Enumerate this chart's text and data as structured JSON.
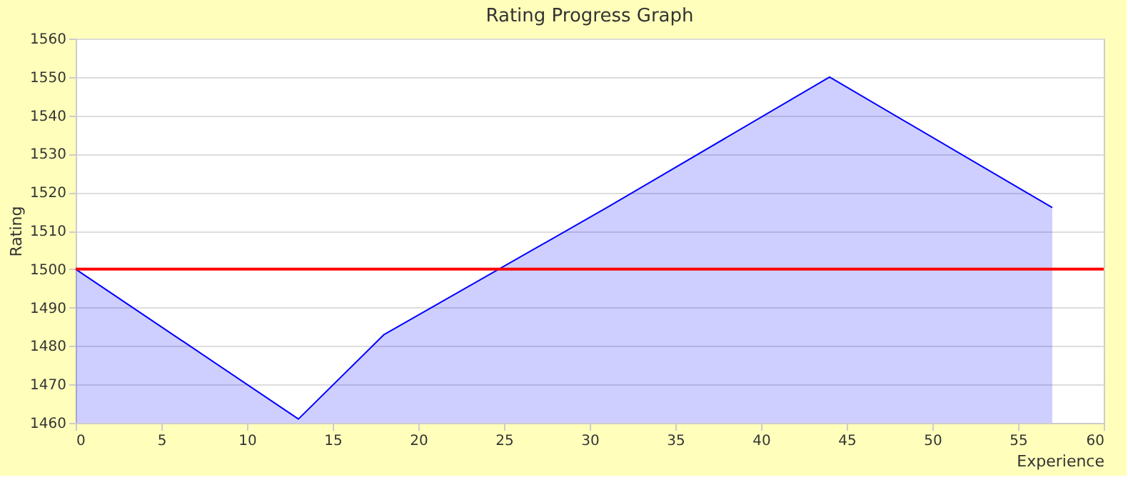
{
  "chart_data": {
    "type": "area",
    "title": "Rating Progress Graph",
    "xlabel": "Experience",
    "ylabel": "Rating",
    "x": [
      0,
      13,
      18,
      31,
      44,
      57
    ],
    "series": [
      {
        "color": "#0000ff",
        "values": [
          1500,
          1461,
          1483,
          1516,
          1550,
          1516
        ]
      }
    ],
    "xlim": [
      0,
      60
    ],
    "xticks": [
      0,
      5,
      10,
      15,
      20,
      25,
      30,
      35,
      40,
      45,
      50,
      55,
      60
    ],
    "ylim": [
      1460,
      1560
    ],
    "yticks": [
      1460,
      1470,
      1480,
      1490,
      1500,
      1510,
      1520,
      1530,
      1540,
      1550,
      1560
    ],
    "ref_lines": [
      {
        "axis": "y",
        "value": 1500,
        "label": null,
        "color": "#ff0000"
      }
    ],
    "grid": "y"
  }
}
